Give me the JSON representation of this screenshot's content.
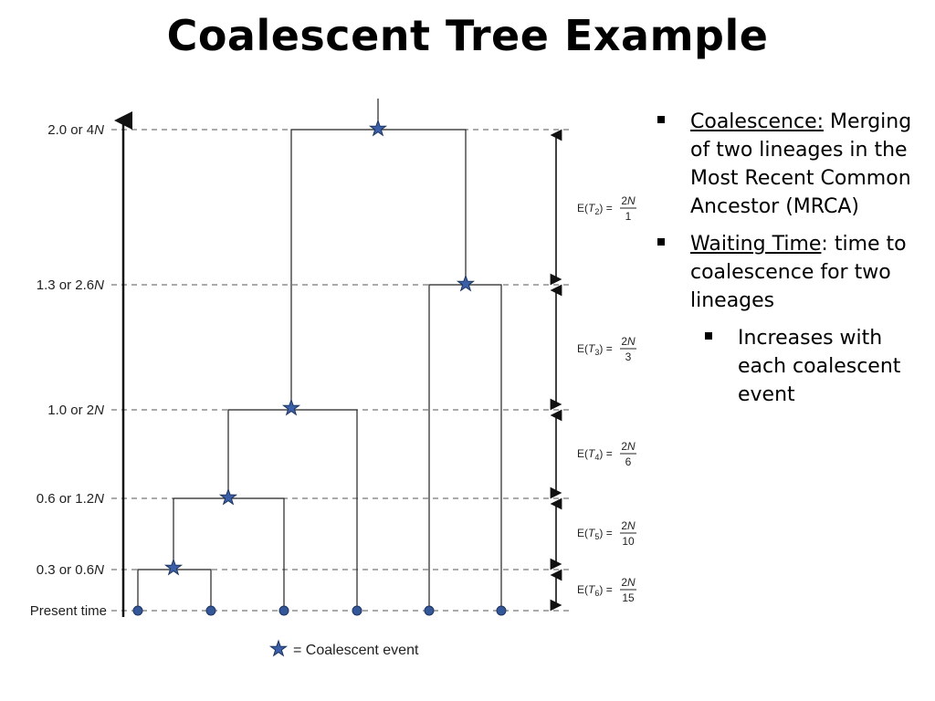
{
  "title": "Coalescent Tree Example",
  "axis": {
    "levels": [
      {
        "label": "2.0 or 4",
        "italic": "N"
      },
      {
        "label": "1.3 or 2.6",
        "italic": "N"
      },
      {
        "label": "1.0 or 2",
        "italic": "N"
      },
      {
        "label": "0.6 or 1.2",
        "italic": "N"
      },
      {
        "label": "0.3 or 0.6",
        "italic": "N"
      },
      {
        "label": "Present time",
        "italic": ""
      }
    ]
  },
  "expectations": [
    {
      "sub": "2",
      "num": "2N",
      "den": "1"
    },
    {
      "sub": "3",
      "num": "2N",
      "den": "3"
    },
    {
      "sub": "4",
      "num": "2N",
      "den": "6"
    },
    {
      "sub": "5",
      "num": "2N",
      "den": "10"
    },
    {
      "sub": "6",
      "num": "2N",
      "den": "15"
    }
  ],
  "legend": {
    "text": "= Coalescent event"
  },
  "bullets": {
    "b1_term": "Coalescence:",
    "b1_text": "Merging of two lineages in the Most Recent Common Ancestor (MRCA)",
    "b2_term": "Waiting Time",
    "b2_text": ": time to coalescence for two lineages",
    "sub1": "Increases with each coalescent event"
  },
  "colors": {
    "star": "#3a5fa8",
    "node": "#34579a",
    "line": "#222222"
  }
}
